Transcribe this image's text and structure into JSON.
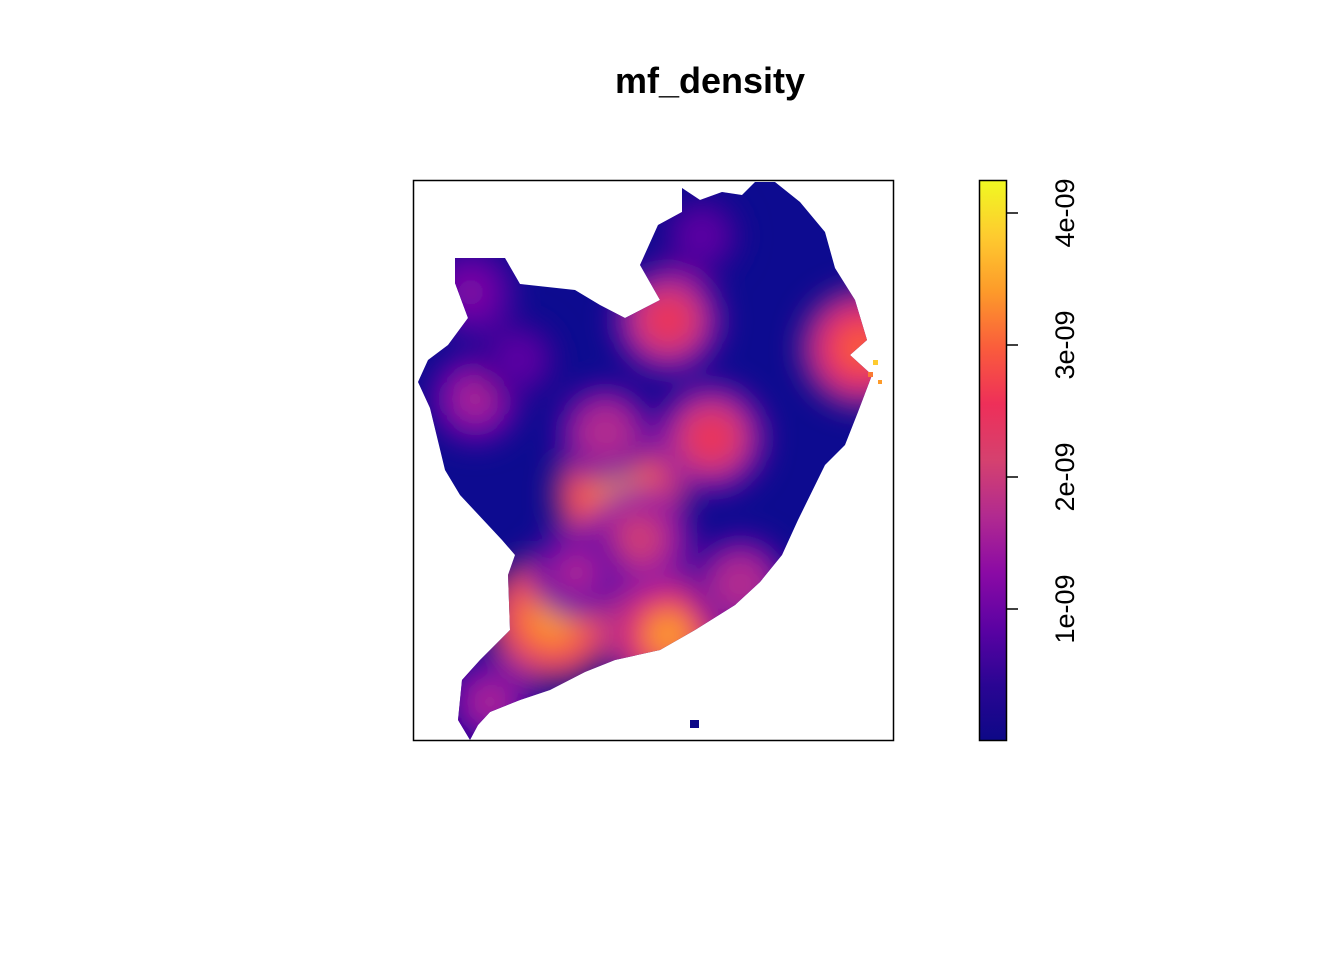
{
  "chart_data": {
    "type": "heatmap",
    "title": "mf_density",
    "xlabel": "",
    "ylabel": "",
    "grid": false,
    "legend": "right",
    "colorbar": {
      "min": 0,
      "max": 4.25e-09,
      "ticks": [
        {
          "value": 1e-09,
          "label": "1e-09"
        },
        {
          "value": 2e-09,
          "label": "2e-09"
        },
        {
          "value": 3e-09,
          "label": "3e-09"
        },
        {
          "value": 4e-09,
          "label": "4e-09"
        }
      ],
      "colors": [
        "#0d0887",
        "#2a0593",
        "#5b02a3",
        "#8b0aa5",
        "#b12a90",
        "#d5416f",
        "#ee2f59",
        "#fa5c3c",
        "#fd9a2a",
        "#fecb2f",
        "#f0f921"
      ]
    },
    "hotspots": [
      {
        "x": 0.43,
        "y": 0.56,
        "value": 3.6e-09
      },
      {
        "x": 0.29,
        "y": 0.78,
        "value": 3.5e-09
      },
      {
        "x": 0.53,
        "y": 0.81,
        "value": 3.3e-09
      },
      {
        "x": 0.93,
        "y": 0.3,
        "value": 3e-09
      },
      {
        "x": 0.62,
        "y": 0.46,
        "value": 2.5e-09
      },
      {
        "x": 0.53,
        "y": 0.25,
        "value": 2.4e-09
      },
      {
        "x": 0.47,
        "y": 0.64,
        "value": 2.3e-09
      },
      {
        "x": 0.4,
        "y": 0.45,
        "value": 1.9e-09
      },
      {
        "x": 0.13,
        "y": 0.39,
        "value": 1.6e-09
      },
      {
        "x": 0.12,
        "y": 0.2,
        "value": 1.3e-09
      },
      {
        "x": 0.6,
        "y": 0.1,
        "value": 1e-09
      },
      {
        "x": 0.22,
        "y": 0.32,
        "value": 1e-09
      },
      {
        "x": 0.34,
        "y": 0.7,
        "value": 1.6e-09
      },
      {
        "x": 0.16,
        "y": 0.93,
        "value": 1.5e-09
      },
      {
        "x": 0.68,
        "y": 0.72,
        "value": 1.9e-09
      }
    ]
  }
}
